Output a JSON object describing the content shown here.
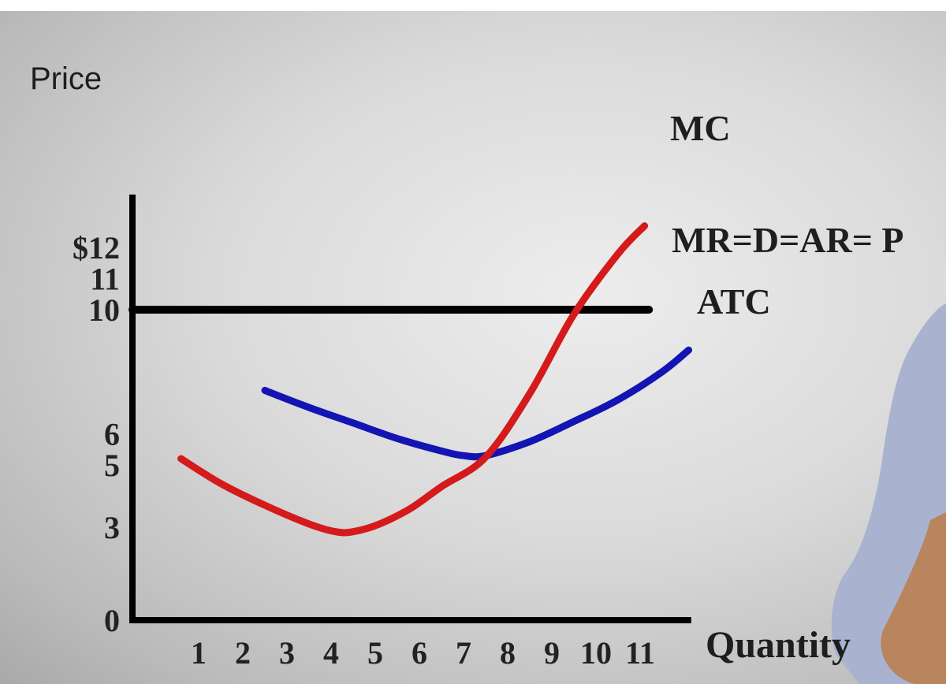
{
  "chart_data": {
    "type": "line",
    "xlabel": "Quantity",
    "ylabel": "Price",
    "x_ticks": [
      "1",
      "2",
      "3",
      "4",
      "5",
      "6",
      "7",
      "8",
      "9",
      "10",
      "11"
    ],
    "y_ticks": [
      {
        "value": 0,
        "label": "0"
      },
      {
        "value": 3,
        "label": "3"
      },
      {
        "value": 5,
        "label": "5"
      },
      {
        "value": 6,
        "label": "6"
      },
      {
        "value": 10,
        "label": "10"
      },
      {
        "value": 11,
        "label": "11"
      },
      {
        "value": 12,
        "label": "$12"
      }
    ],
    "xlim": [
      0,
      12.3
    ],
    "ylim": [
      0,
      13.2
    ],
    "grid": false,
    "series": [
      {
        "name": "MC",
        "color": "#d41a1a",
        "points": [
          [
            1.1,
            5.2
          ],
          [
            2.0,
            4.4
          ],
          [
            3.0,
            3.7
          ],
          [
            4.0,
            3.1
          ],
          [
            4.6,
            2.85
          ],
          [
            5.0,
            2.85
          ],
          [
            5.6,
            3.1
          ],
          [
            6.3,
            3.6
          ],
          [
            7.0,
            4.3
          ],
          [
            8.0,
            5.25
          ],
          [
            9.0,
            7.3
          ],
          [
            10.0,
            9.85
          ],
          [
            11.0,
            11.8
          ],
          [
            11.6,
            12.7
          ]
        ]
      },
      {
        "name": "ATC",
        "color": "#1414b4",
        "points": [
          [
            3.0,
            7.4
          ],
          [
            4.0,
            6.85
          ],
          [
            5.0,
            6.35
          ],
          [
            6.0,
            5.85
          ],
          [
            7.0,
            5.45
          ],
          [
            7.5,
            5.3
          ],
          [
            8.0,
            5.3
          ],
          [
            9.0,
            5.75
          ],
          [
            10.0,
            6.4
          ],
          [
            11.0,
            7.1
          ],
          [
            12.0,
            8.0
          ],
          [
            12.6,
            8.7
          ]
        ]
      },
      {
        "name": "MR=D=AR= P",
        "color": "#000000",
        "points": [
          [
            0,
            10
          ],
          [
            11.7,
            10
          ]
        ]
      }
    ]
  }
}
